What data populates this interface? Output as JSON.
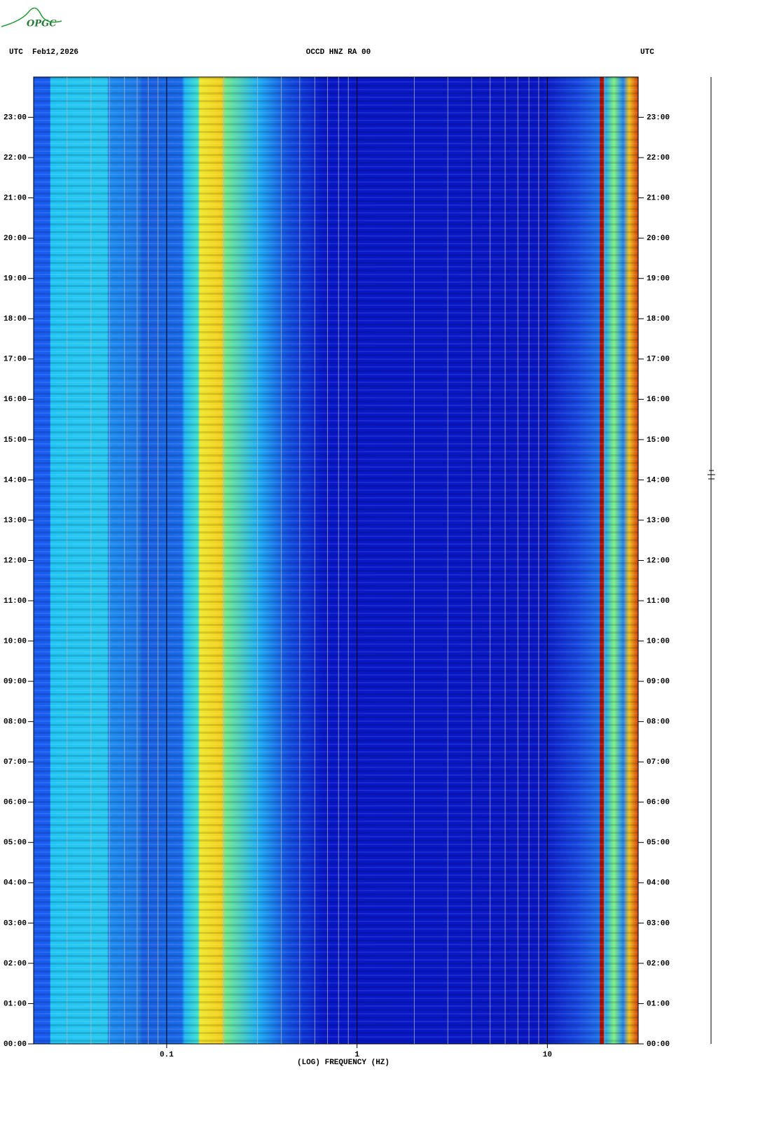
{
  "logo": "OPGC",
  "chart_data": {
    "type": "spectrogram",
    "title": "OCCD HNZ RA 00",
    "date_label": "UTC  Feb12,2026",
    "right_label": "UTC",
    "xlabel": "(LOG) FREQUENCY (HZ)",
    "xscale": "log",
    "xlim": [
      0.02,
      30
    ],
    "xticks": [
      0.1,
      1,
      10
    ],
    "xgrid": [
      0.03,
      0.04,
      0.05,
      0.06,
      0.07,
      0.08,
      0.09,
      0.2,
      0.3,
      0.4,
      0.5,
      0.6,
      0.7,
      0.8,
      0.9,
      2,
      3,
      4,
      5,
      6,
      7,
      8,
      9,
      20
    ],
    "ylim": [
      0,
      24
    ],
    "yticks": [
      {
        "value": 0,
        "label": "00:00"
      },
      {
        "value": 1,
        "label": "01:00"
      },
      {
        "value": 2,
        "label": "02:00"
      },
      {
        "value": 3,
        "label": "03:00"
      },
      {
        "value": 4,
        "label": "04:00"
      },
      {
        "value": 5,
        "label": "05:00"
      },
      {
        "value": 6,
        "label": "06:00"
      },
      {
        "value": 7,
        "label": "07:00"
      },
      {
        "value": 8,
        "label": "08:00"
      },
      {
        "value": 9,
        "label": "09:00"
      },
      {
        "value": 10,
        "label": "10:00"
      },
      {
        "value": 11,
        "label": "11:00"
      },
      {
        "value": 12,
        "label": "12:00"
      },
      {
        "value": 13,
        "label": "13:00"
      },
      {
        "value": 14,
        "label": "14:00"
      },
      {
        "value": 15,
        "label": "15:00"
      },
      {
        "value": 16,
        "label": "16:00"
      },
      {
        "value": 17,
        "label": "17:00"
      },
      {
        "value": 18,
        "label": "18:00"
      },
      {
        "value": 19,
        "label": "19:00"
      },
      {
        "value": 20,
        "label": "20:00"
      },
      {
        "value": 21,
        "label": "21:00"
      },
      {
        "value": 22,
        "label": "22:00"
      },
      {
        "value": 23,
        "label": "23:00"
      }
    ]
  }
}
